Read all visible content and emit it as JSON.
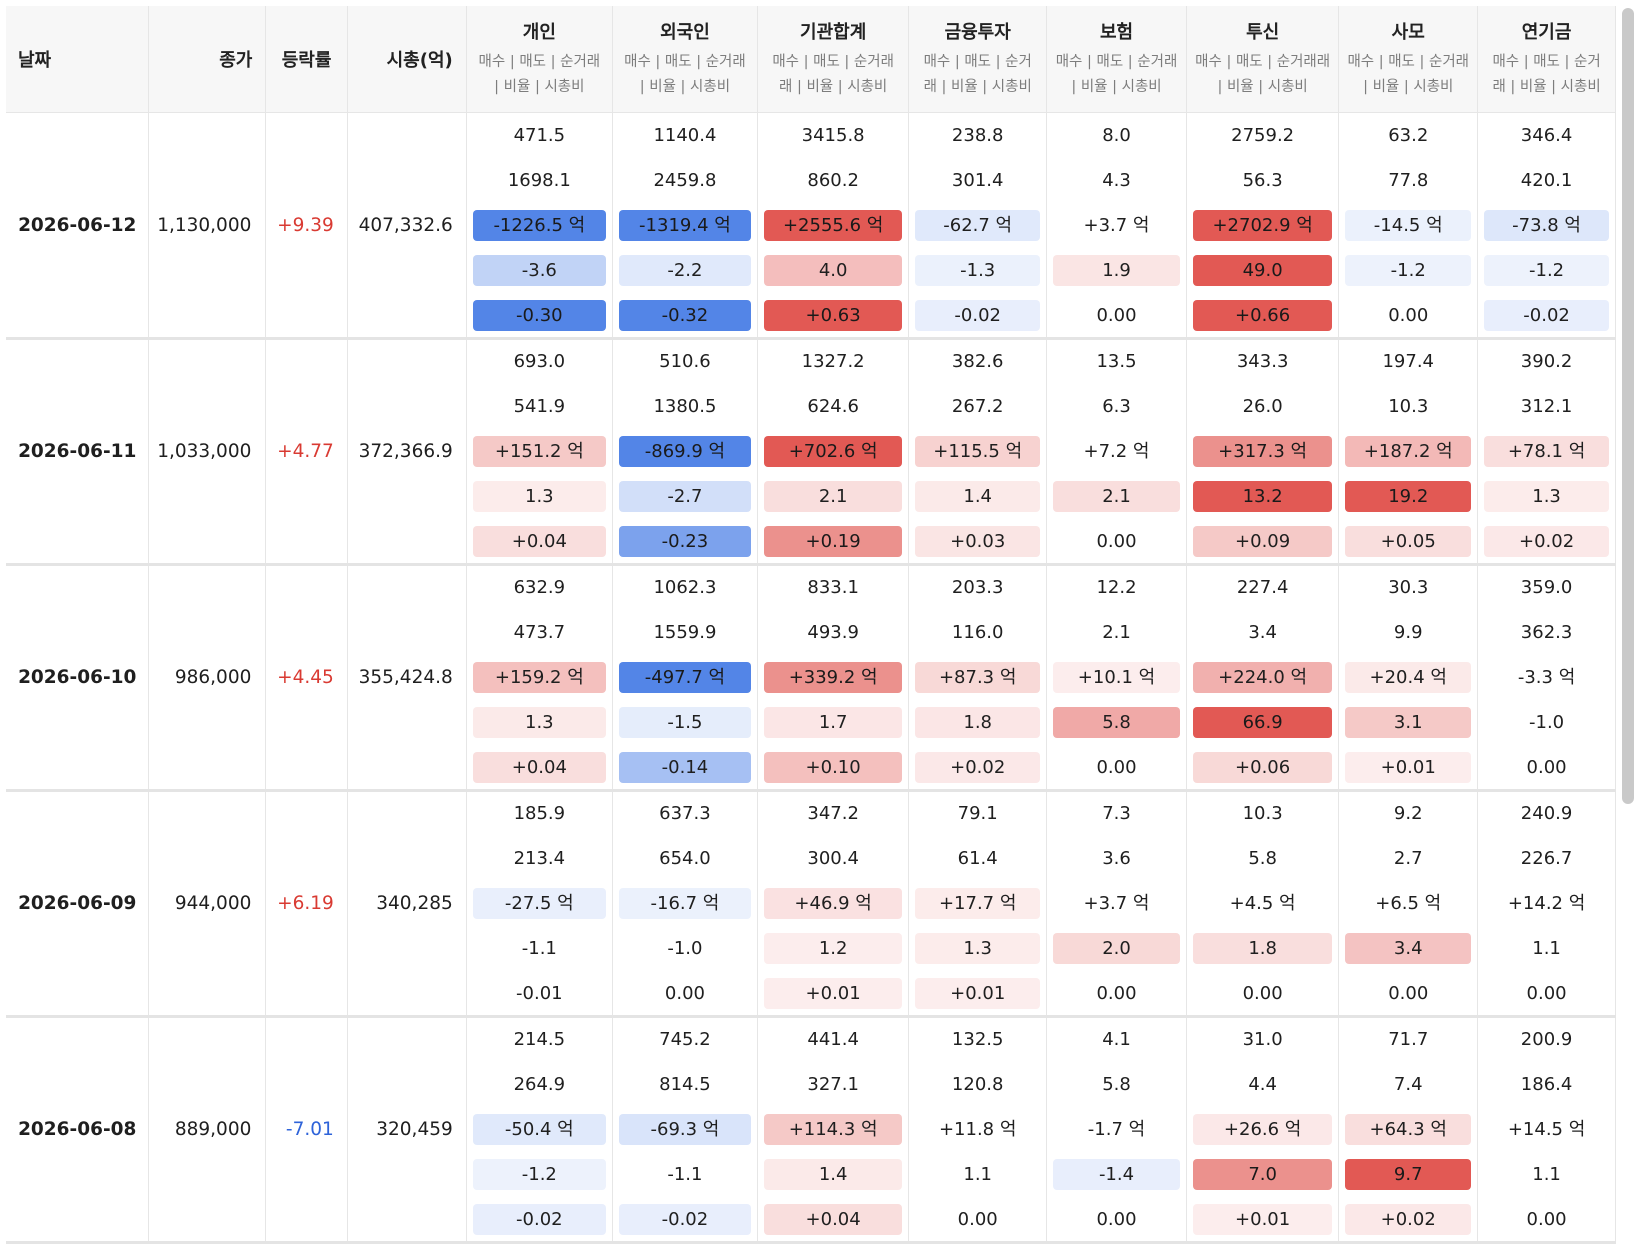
{
  "header": {
    "date": "날짜",
    "close": "종가",
    "change": "등락률",
    "mcap": "시총(억)",
    "groups": [
      "개인",
      "외국인",
      "기관합계",
      "금융투자",
      "보험",
      "투신",
      "사모",
      "연기금"
    ],
    "group_subs": [
      "매수 | 매도 | 순거래 | 비율 | 시총비",
      "매수 | 매도 | 순거래 | 비율 | 시총비",
      "매수 | 매도 | 순거래래 | 비율 | 시총비",
      "매수 | 매도 | 순거래 | 비율 | 시총비",
      "매수 | 매도 | 순거래 | 비율 | 시총비",
      "매수 | 매도 | 순거래래 | 비율 | 시총비",
      "매수 | 매도 | 순거래 | 비율 | 시총비",
      "매수 | 매도 | 순거래 | 비율 | 시총비"
    ]
  },
  "colors": {
    "text_up": "#d93a32",
    "text_down": "#2e63d9",
    "heat_red": "#e0504b",
    "heat_blue": "#4a7ee6"
  },
  "rows": [
    {
      "date": "2026-06-12",
      "close": "1,130,000",
      "change": "+9.39",
      "dir": "up",
      "mcap": "407,332.6",
      "groups": [
        {
          "buy": "471.5",
          "sell": "1698.1",
          "net": "-1226.5 억",
          "ratio": "-3.6",
          "mcap": "-0.30",
          "net_i": -0.95,
          "ratio_i": -0.28,
          "mcap_i": -0.95
        },
        {
          "buy": "1140.4",
          "sell": "2459.8",
          "net": "-1319.4 억",
          "ratio": "-2.2",
          "mcap": "-0.32",
          "net_i": -0.95,
          "ratio_i": -0.1,
          "mcap_i": -0.95
        },
        {
          "buy": "3415.8",
          "sell": "860.2",
          "net": "+2555.6 억",
          "ratio": "4.0",
          "mcap": "+0.63",
          "net_i": 0.95,
          "ratio_i": 0.32,
          "mcap_i": 0.95
        },
        {
          "buy": "238.8",
          "sell": "301.4",
          "net": "-62.7 억",
          "ratio": "-1.3",
          "mcap": "-0.02",
          "net_i": -0.1,
          "ratio_i": -0.03,
          "mcap_i": -0.05
        },
        {
          "buy": "8.0",
          "sell": "4.3",
          "net": "+3.7 억",
          "ratio": "1.9",
          "mcap": "0.00",
          "net_i": 0,
          "ratio_i": 0.08,
          "mcap_i": 0
        },
        {
          "buy": "2759.2",
          "sell": "56.3",
          "net": "+2702.9 억",
          "ratio": "49.0",
          "mcap": "+0.66",
          "net_i": 0.95,
          "ratio_i": 0.95,
          "mcap_i": 0.95
        },
        {
          "buy": "63.2",
          "sell": "77.8",
          "net": "-14.5 억",
          "ratio": "-1.2",
          "mcap": "0.00",
          "net_i": -0.03,
          "ratio_i": -0.02,
          "mcap_i": 0
        },
        {
          "buy": "346.4",
          "sell": "420.1",
          "net": "-73.8 억",
          "ratio": "-1.2",
          "mcap": "-0.02",
          "net_i": -0.12,
          "ratio_i": -0.02,
          "mcap_i": -0.05
        }
      ]
    },
    {
      "date": "2026-06-11",
      "close": "1,033,000",
      "change": "+4.77",
      "dir": "up",
      "mcap": "372,366.9",
      "groups": [
        {
          "buy": "693.0",
          "sell": "541.9",
          "net": "+151.2 억",
          "ratio": "1.3",
          "mcap": "+0.04",
          "net_i": 0.25,
          "ratio_i": 0.03,
          "mcap_i": 0.12
        },
        {
          "buy": "510.6",
          "sell": "1380.5",
          "net": "-869.9 억",
          "ratio": "-2.7",
          "mcap": "-0.23",
          "net_i": -0.95,
          "ratio_i": -0.18,
          "mcap_i": -0.7
        },
        {
          "buy": "1327.2",
          "sell": "624.6",
          "net": "+702.6 억",
          "ratio": "2.1",
          "mcap": "+0.19",
          "net_i": 0.95,
          "ratio_i": 0.12,
          "mcap_i": 0.6
        },
        {
          "buy": "382.6",
          "sell": "267.2",
          "net": "+115.5 억",
          "ratio": "1.4",
          "mcap": "+0.03",
          "net_i": 0.2,
          "ratio_i": 0.04,
          "mcap_i": 0.08
        },
        {
          "buy": "13.5",
          "sell": "6.3",
          "net": "+7.2 억",
          "ratio": "2.1",
          "mcap": "0.00",
          "net_i": 0,
          "ratio_i": 0.12,
          "mcap_i": 0
        },
        {
          "buy": "343.3",
          "sell": "26.0",
          "net": "+317.3 억",
          "ratio": "13.2",
          "mcap": "+0.09",
          "net_i": 0.6,
          "ratio_i": 0.95,
          "mcap_i": 0.25
        },
        {
          "buy": "197.4",
          "sell": "10.3",
          "net": "+187.2 억",
          "ratio": "19.2",
          "mcap": "+0.05",
          "net_i": 0.35,
          "ratio_i": 0.95,
          "mcap_i": 0.12
        },
        {
          "buy": "390.2",
          "sell": "312.1",
          "net": "+78.1 억",
          "ratio": "1.3",
          "mcap": "+0.02",
          "net_i": 0.12,
          "ratio_i": 0.03,
          "mcap_i": 0.05
        }
      ]
    },
    {
      "date": "2026-06-10",
      "close": "986,000",
      "change": "+4.45",
      "dir": "up",
      "mcap": "355,424.8",
      "groups": [
        {
          "buy": "632.9",
          "sell": "473.7",
          "net": "+159.2 억",
          "ratio": "1.3",
          "mcap": "+0.04",
          "net_i": 0.3,
          "ratio_i": 0.04,
          "mcap_i": 0.12
        },
        {
          "buy": "1062.3",
          "sell": "1559.9",
          "net": "-497.7 억",
          "ratio": "-1.5",
          "mcap": "-0.14",
          "net_i": -0.95,
          "ratio_i": -0.06,
          "mcap_i": -0.45
        },
        {
          "buy": "833.1",
          "sell": "493.9",
          "net": "+339.2 억",
          "ratio": "1.7",
          "mcap": "+0.10",
          "net_i": 0.6,
          "ratio_i": 0.06,
          "mcap_i": 0.3
        },
        {
          "buy": "203.3",
          "sell": "116.0",
          "net": "+87.3 억",
          "ratio": "1.8",
          "mcap": "+0.02",
          "net_i": 0.15,
          "ratio_i": 0.06,
          "mcap_i": 0.05
        },
        {
          "buy": "12.2",
          "sell": "2.1",
          "net": "+10.1 억",
          "ratio": "5.8",
          "mcap": "0.00",
          "net_i": 0.02,
          "ratio_i": 0.45,
          "mcap_i": 0
        },
        {
          "buy": "227.4",
          "sell": "3.4",
          "net": "+224.0 억",
          "ratio": "66.9",
          "mcap": "+0.06",
          "net_i": 0.4,
          "ratio_i": 0.95,
          "mcap_i": 0.15
        },
        {
          "buy": "30.3",
          "sell": "9.9",
          "net": "+20.4 억",
          "ratio": "3.1",
          "mcap": "+0.01",
          "net_i": 0.04,
          "ratio_i": 0.25,
          "mcap_i": 0.02
        },
        {
          "buy": "359.0",
          "sell": "362.3",
          "net": "-3.3 억",
          "ratio": "-1.0",
          "mcap": "0.00",
          "net_i": 0,
          "ratio_i": 0,
          "mcap_i": 0
        }
      ]
    },
    {
      "date": "2026-06-09",
      "close": "944,000",
      "change": "+6.19",
      "dir": "up",
      "mcap": "340,285",
      "groups": [
        {
          "buy": "185.9",
          "sell": "213.4",
          "net": "-27.5 억",
          "ratio": "-1.1",
          "mcap": "-0.01",
          "net_i": -0.04,
          "ratio_i": 0,
          "mcap_i": 0
        },
        {
          "buy": "637.3",
          "sell": "654.0",
          "net": "-16.7 억",
          "ratio": "-1.0",
          "mcap": "0.00",
          "net_i": -0.03,
          "ratio_i": 0,
          "mcap_i": 0
        },
        {
          "buy": "347.2",
          "sell": "300.4",
          "net": "+46.9 억",
          "ratio": "1.2",
          "mcap": "+0.01",
          "net_i": 0.1,
          "ratio_i": 0.02,
          "mcap_i": 0.02
        },
        {
          "buy": "79.1",
          "sell": "61.4",
          "net": "+17.7 억",
          "ratio": "1.3",
          "mcap": "+0.01",
          "net_i": 0.03,
          "ratio_i": 0.03,
          "mcap_i": 0.02
        },
        {
          "buy": "7.3",
          "sell": "3.6",
          "net": "+3.7 억",
          "ratio": "2.0",
          "mcap": "0.00",
          "net_i": 0,
          "ratio_i": 0.15,
          "mcap_i": 0
        },
        {
          "buy": "10.3",
          "sell": "5.8",
          "net": "+4.5 억",
          "ratio": "1.8",
          "mcap": "0.00",
          "net_i": 0,
          "ratio_i": 0.12,
          "mcap_i": 0
        },
        {
          "buy": "9.2",
          "sell": "2.7",
          "net": "+6.5 억",
          "ratio": "3.4",
          "mcap": "0.00",
          "net_i": 0,
          "ratio_i": 0.28,
          "mcap_i": 0
        },
        {
          "buy": "240.9",
          "sell": "226.7",
          "net": "+14.2 억",
          "ratio": "1.1",
          "mcap": "0.00",
          "net_i": 0,
          "ratio_i": 0,
          "mcap_i": 0
        }
      ]
    },
    {
      "date": "2026-06-08",
      "close": "889,000",
      "change": "-7.01",
      "dir": "down",
      "mcap": "320,459",
      "groups": [
        {
          "buy": "214.5",
          "sell": "264.9",
          "net": "-50.4 억",
          "ratio": "-1.2",
          "mcap": "-0.02",
          "net_i": -0.1,
          "ratio_i": -0.02,
          "mcap_i": -0.05
        },
        {
          "buy": "745.2",
          "sell": "814.5",
          "net": "-69.3 억",
          "ratio": "-1.1",
          "mcap": "-0.02",
          "net_i": -0.14,
          "ratio_i": 0,
          "mcap_i": -0.05
        },
        {
          "buy": "441.4",
          "sell": "327.1",
          "net": "+114.3 억",
          "ratio": "1.4",
          "mcap": "+0.04",
          "net_i": 0.25,
          "ratio_i": 0.04,
          "mcap_i": 0.12
        },
        {
          "buy": "132.5",
          "sell": "120.8",
          "net": "+11.8 억",
          "ratio": "1.1",
          "mcap": "0.00",
          "net_i": 0,
          "ratio_i": 0,
          "mcap_i": 0
        },
        {
          "buy": "4.1",
          "sell": "5.8",
          "net": "-1.7 억",
          "ratio": "-1.4",
          "mcap": "0.00",
          "net_i": 0,
          "ratio_i": -0.05,
          "mcap_i": 0
        },
        {
          "buy": "31.0",
          "sell": "4.4",
          "net": "+26.6 억",
          "ratio": "7.0",
          "mcap": "+0.01",
          "net_i": 0.05,
          "ratio_i": 0.6,
          "mcap_i": 0.02
        },
        {
          "buy": "71.7",
          "sell": "7.4",
          "net": "+64.3 억",
          "ratio": "9.7",
          "mcap": "+0.02",
          "net_i": 0.12,
          "ratio_i": 0.95,
          "mcap_i": 0.05
        },
        {
          "buy": "200.9",
          "sell": "186.4",
          "net": "+14.5 억",
          "ratio": "1.1",
          "mcap": "0.00",
          "net_i": 0,
          "ratio_i": 0,
          "mcap_i": 0
        }
      ]
    }
  ]
}
